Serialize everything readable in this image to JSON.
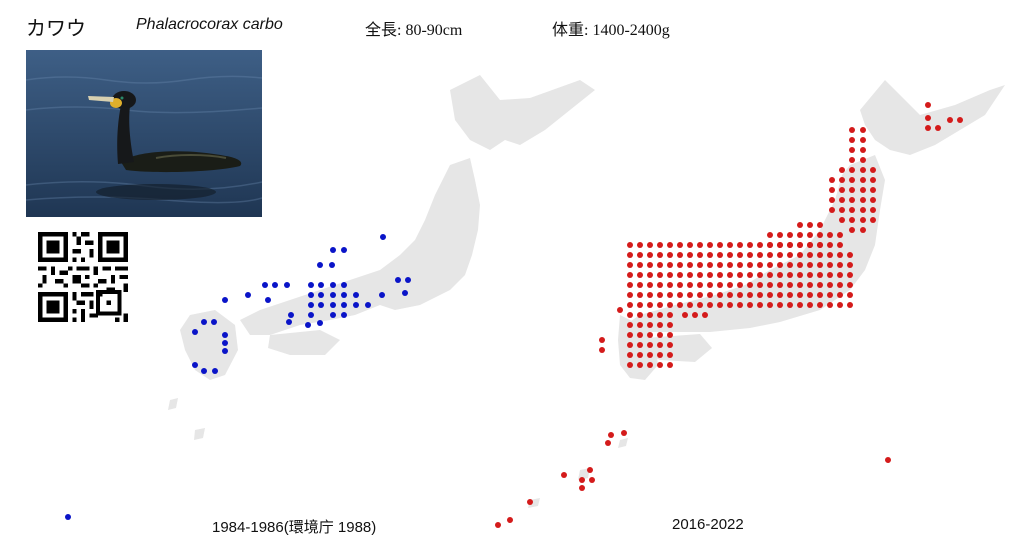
{
  "header": {
    "japanese_name": "カワウ",
    "scientific_name": "Phalacrocorax carbo",
    "length": "全長: 80-90cm",
    "weight": "体重: 1400-2400g"
  },
  "photo": {
    "subject": "cormorant-swimming"
  },
  "qr": {
    "icon": "qr-code-icon"
  },
  "maps": [
    {
      "caption": "1984-1986(環境庁 1988)",
      "dot_color": "#0a14c8"
    },
    {
      "caption": "2016-2022",
      "dot_color": "#d41b1b"
    }
  ],
  "colors": {
    "land": "#e6e6e6",
    "water": "#2e4a6e"
  }
}
